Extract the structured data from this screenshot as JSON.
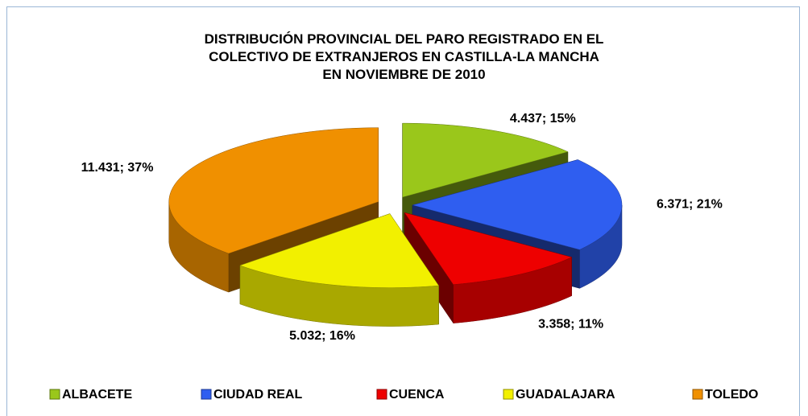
{
  "chart_data": {
    "type": "pie",
    "title": "DISTRIBUCIÓN PROVINCIAL DEL PARO REGISTRADO EN EL\nCOLECTIVO DE EXTRANJEROS EN CASTILLA-LA MANCHA\nEN NOVIEMBRE DE 2010",
    "categories": [
      "ALBACETE",
      "CIUDAD REAL",
      "CUENCA",
      "GUADALAJARA",
      "TOLEDO"
    ],
    "values": [
      4437,
      6371,
      3358,
      5032,
      11431
    ],
    "value_labels": [
      "4.437; 15%",
      "6.371; 21%",
      "3.358; 11%",
      "5.032; 16%",
      "11.431; 37%"
    ],
    "colors": [
      "#9ac71b",
      "#2f5ef0",
      "#ee0000",
      "#f2f000",
      "#f09000"
    ],
    "legend": "bottom"
  }
}
